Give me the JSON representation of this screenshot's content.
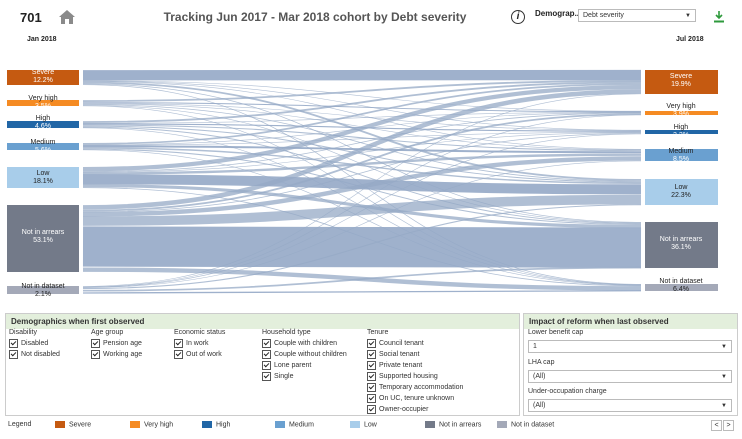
{
  "header": {
    "count": "701",
    "title": "Tracking Jun 2017 - Mar 2018 cohort by Debt severity",
    "info_symbol": "i",
    "demographic_label": "Demograp...",
    "demographic_value": "Debt severity"
  },
  "axes": {
    "left": "Jan 2018",
    "right": "Jul 2018"
  },
  "colors": {
    "Severe": "#c55a11",
    "Very high": "#f58b23",
    "High": "#2166a6",
    "Medium": "#6aa0d0",
    "Low": "#a8cdea",
    "Not in arrears": "#737a89",
    "Not in dataset": "#a4a9b8",
    "flow": "#95a9c6"
  },
  "left_nodes": [
    {
      "name": "Severe",
      "pct": "12.2%"
    },
    {
      "name": "Very high",
      "pct": "3.5%"
    },
    {
      "name": "High",
      "pct": "4.6%"
    },
    {
      "name": "Medium",
      "pct": "5.6%"
    },
    {
      "name": "Low",
      "pct": "18.1%"
    },
    {
      "name": "Not in arrears",
      "pct": "53.1%"
    },
    {
      "name": "Not in dataset",
      "pct": "2.1%"
    }
  ],
  "right_nodes": [
    {
      "name": "Severe",
      "pct": "19.9%"
    },
    {
      "name": "Very high",
      "pct": "3.9%"
    },
    {
      "name": "High",
      "pct": "2.2%"
    },
    {
      "name": "Medium",
      "pct": "8.5%"
    },
    {
      "name": "Low",
      "pct": "22.3%"
    },
    {
      "name": "Not in arrears",
      "pct": "36.1%"
    },
    {
      "name": "Not in dataset",
      "pct": "6.4%"
    }
  ],
  "demographics": {
    "title": "Demographics when first observed",
    "groups": [
      {
        "heading": "Disability",
        "items": [
          "Disabled",
          "Not disabled"
        ]
      },
      {
        "heading": "Age group",
        "items": [
          "Pension age",
          "Working age"
        ]
      },
      {
        "heading": "Economic status",
        "items": [
          "In work",
          "Out of work"
        ]
      },
      {
        "heading": "Household type",
        "items": [
          "Couple with children",
          "Couple without children",
          "Lone parent",
          "Single"
        ]
      },
      {
        "heading": "Tenure",
        "items": [
          "Council tenant",
          "Social tenant",
          "Private tenant",
          "Supported housing",
          "Temporary accommodation",
          "On UC, tenure unknown",
          "Owner-occupier"
        ]
      }
    ]
  },
  "impact": {
    "title": "Impact of reform when last observed",
    "filters": [
      {
        "label": "Lower benefit cap",
        "value": "1"
      },
      {
        "label": "LHA cap",
        "value": "(All)"
      },
      {
        "label": "Under-occupation charge",
        "value": "(All)"
      }
    ]
  },
  "legend": {
    "title": "Legend",
    "items": [
      "Severe",
      "Very high",
      "High",
      "Medium",
      "Low",
      "Not in arrears",
      "Not in dataset"
    ]
  },
  "pager": {
    "prev": "<",
    "next": ">"
  }
}
